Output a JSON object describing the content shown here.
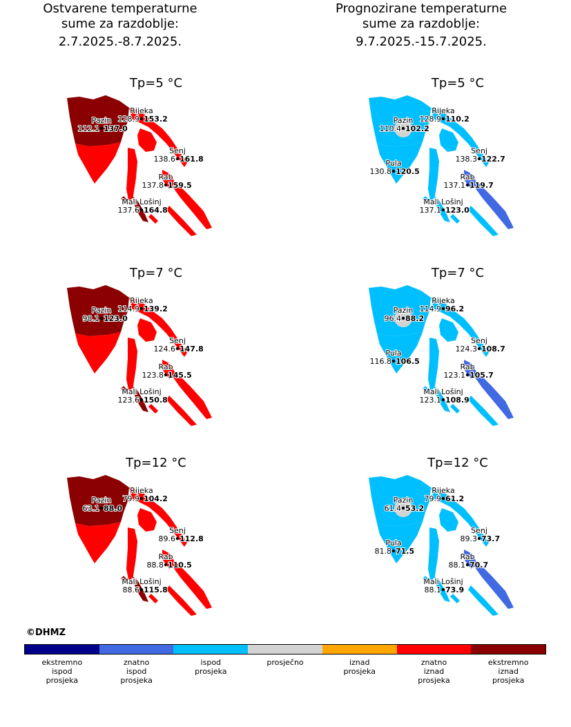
{
  "left_title": {
    "line1": "Ostvarene temperaturne",
    "line2": "sume za razdoblje:",
    "dates": "2.7.2025.-8.7.2025."
  },
  "right_title": {
    "line1": "Prognozirane temperaturne",
    "line2": "sume za razdoblje:",
    "dates": "9.7.2025.-15.7.2025."
  },
  "copyright": "©DHMZ",
  "colors": {
    "ekstremno_ispod": "#00008b",
    "znatno_ispod": "#4169e1",
    "ispod": "#00bfff",
    "prosjecno": "#d3d3d3",
    "iznad": "#ffa500",
    "znatno_iznad": "#ff0000",
    "ekstremno_iznad": "#8b0000"
  },
  "legend": [
    {
      "lines": [
        "ekstremno",
        "ispod",
        "prosjeka"
      ],
      "color": "#00008b"
    },
    {
      "lines": [
        "znatno",
        "ispod",
        "prosjeka"
      ],
      "color": "#4169e1"
    },
    {
      "lines": [
        "ispod",
        "prosjeka"
      ],
      "color": "#00bfff"
    },
    {
      "lines": [
        "prosječno"
      ],
      "color": "#d3d3d3"
    },
    {
      "lines": [
        "iznad",
        "prosjeka"
      ],
      "color": "#ffa500"
    },
    {
      "lines": [
        "znatno",
        "iznad",
        "prosjeka"
      ],
      "color": "#ff0000"
    },
    {
      "lines": [
        "ekstremno",
        "iznad",
        "prosjeka"
      ],
      "color": "#8b0000"
    }
  ],
  "panels": [
    {
      "title": "Tp=5 °C",
      "period": "observed",
      "north_color": "#8b0000",
      "south_color": "#ff0000",
      "coast_color": "#ff0000",
      "islands_color": "#ff0000",
      "losinj_color": "#8b0000",
      "pazin_circle": false,
      "stations": [
        {
          "name": "Rijeka",
          "avg": "128.9",
          "val": "153.2"
        },
        {
          "name": "Pazin",
          "avg": "112.1",
          "val": "137.0"
        },
        {
          "name": "Senj",
          "avg": "138.6",
          "val": "161.8"
        },
        {
          "name": "Rab",
          "avg": "137.8",
          "val": "159.5"
        },
        {
          "name": "Mali Lošinj",
          "avg": "137.6",
          "val": "164.8"
        }
      ]
    },
    {
      "title": "Tp=5 °C",
      "period": "forecast",
      "north_color": "#00bfff",
      "south_color": "#00bfff",
      "coast_color": "#00bfff",
      "islands_color": "#4169e1",
      "losinj_color": "#00bfff",
      "pazin_circle": true,
      "stations": [
        {
          "name": "Rijeka",
          "avg": "128.9",
          "val": "110.2"
        },
        {
          "name": "Pazin",
          "avg": "110.4",
          "val": "102.2"
        },
        {
          "name": "Senj",
          "avg": "138.3",
          "val": "122.7"
        },
        {
          "name": "Pula",
          "avg": "130.8",
          "val": "120.5"
        },
        {
          "name": "Rab",
          "avg": "137.1",
          "val": "119.7"
        },
        {
          "name": "Mali Lošinj",
          "avg": "137.1",
          "val": "123.0"
        }
      ]
    },
    {
      "title": "Tp=7 °C",
      "period": "observed",
      "north_color": "#8b0000",
      "south_color": "#ff0000",
      "coast_color": "#ff0000",
      "islands_color": "#ff0000",
      "losinj_color": "#8b0000",
      "pazin_circle": false,
      "stations": [
        {
          "name": "Rijeka",
          "avg": "114.9",
          "val": "139.2"
        },
        {
          "name": "Pazin",
          "avg": "98.1",
          "val": "123.0"
        },
        {
          "name": "Senj",
          "avg": "124.6",
          "val": "147.8"
        },
        {
          "name": "Rab",
          "avg": "123.8",
          "val": "145.5"
        },
        {
          "name": "Mali Lošinj",
          "avg": "123.6",
          "val": "150.8"
        }
      ]
    },
    {
      "title": "Tp=7 °C",
      "period": "forecast",
      "north_color": "#00bfff",
      "south_color": "#00bfff",
      "coast_color": "#00bfff",
      "islands_color": "#4169e1",
      "losinj_color": "#00bfff",
      "pazin_circle": true,
      "stations": [
        {
          "name": "Rijeka",
          "avg": "114.9",
          "val": "96.2"
        },
        {
          "name": "Pazin",
          "avg": "96.4",
          "val": "88.2"
        },
        {
          "name": "Senj",
          "avg": "124.3",
          "val": "108.7"
        },
        {
          "name": "Pula",
          "avg": "116.8",
          "val": "106.5"
        },
        {
          "name": "Rab",
          "avg": "123.1",
          "val": "105.7"
        },
        {
          "name": "Mali Lošinj",
          "avg": "123.1",
          "val": "108.9"
        }
      ]
    },
    {
      "title": "Tp=12 °C",
      "period": "observed",
      "north_color": "#8b0000",
      "south_color": "#ff0000",
      "coast_color": "#ff0000",
      "islands_color": "#ff0000",
      "losinj_color": "#8b0000",
      "pazin_circle": false,
      "stations": [
        {
          "name": "Rijeka",
          "avg": "79.9",
          "val": "104.2"
        },
        {
          "name": "Pazin",
          "avg": "63.1",
          "val": "88.0"
        },
        {
          "name": "Senj",
          "avg": "89.6",
          "val": "112.8"
        },
        {
          "name": "Rab",
          "avg": "88.8",
          "val": "110.5"
        },
        {
          "name": "Mali Lošinj",
          "avg": "88.6",
          "val": "115.8"
        }
      ]
    },
    {
      "title": "Tp=12 °C",
      "period": "forecast",
      "north_color": "#00bfff",
      "south_color": "#00bfff",
      "coast_color": "#00bfff",
      "islands_color": "#4169e1",
      "losinj_color": "#00bfff",
      "pazin_circle": true,
      "stations": [
        {
          "name": "Rijeka",
          "avg": "79.9",
          "val": "61.2"
        },
        {
          "name": "Pazin",
          "avg": "61.4",
          "val": "53.2"
        },
        {
          "name": "Senj",
          "avg": "89.3",
          "val": "73.7"
        },
        {
          "name": "Pula",
          "avg": "81.8",
          "val": "71.5"
        },
        {
          "name": "Rab",
          "avg": "88.1",
          "val": "70.7"
        },
        {
          "name": "Mali Lošinj",
          "avg": "88.1",
          "val": "73.9"
        }
      ]
    }
  ]
}
